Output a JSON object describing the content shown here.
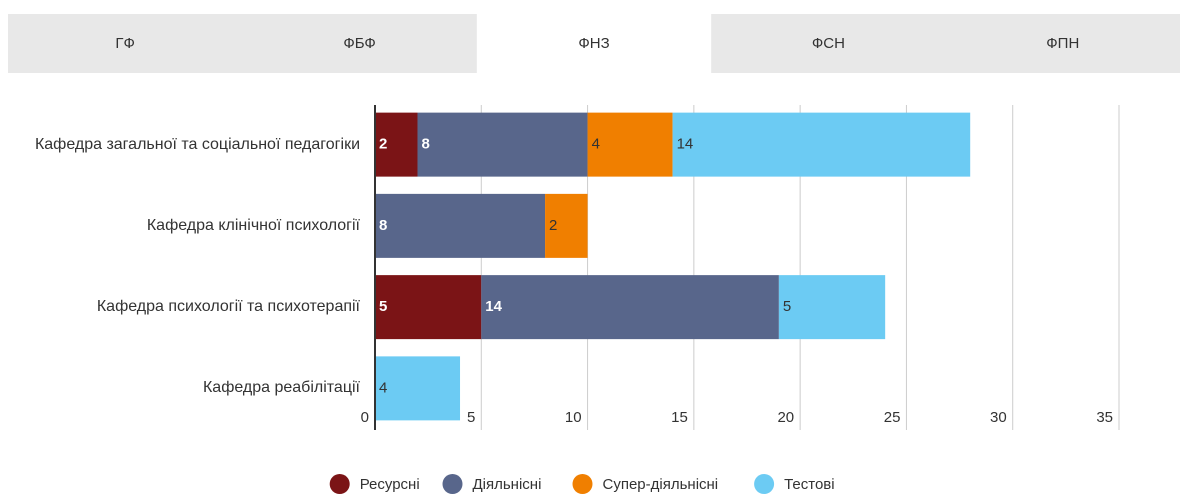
{
  "tabs": [
    "ГФ",
    "ФБФ",
    "ФНЗ",
    "ФСН",
    "ФПН"
  ],
  "active_tab": 2,
  "chart_data": {
    "type": "bar",
    "orientation": "horizontal",
    "stacked": true,
    "categories": [
      "Кафедра загальної та соціальної педагогіки",
      "Кафедра клінічної психології",
      "Кафедра психології та психотерапії",
      "Кафедра реабілітації"
    ],
    "series": [
      {
        "name": "Ресурсні",
        "color": "#7b1416",
        "values": [
          2,
          null,
          5,
          null
        ]
      },
      {
        "name": "Діяльнісні",
        "color": "#58668b",
        "values": [
          8,
          8,
          14,
          null
        ]
      },
      {
        "name": "Супер-діяльнісні",
        "color": "#f07f00",
        "values": [
          4,
          2,
          null,
          null
        ]
      },
      {
        "name": "Тестові",
        "color": "#6ccbf3",
        "values": [
          14,
          null,
          5,
          4
        ]
      }
    ],
    "xlim": [
      0,
      35
    ],
    "xticks": [
      0,
      5,
      10,
      15,
      20,
      25,
      30,
      35
    ],
    "grid": true,
    "legend": "bottom"
  }
}
